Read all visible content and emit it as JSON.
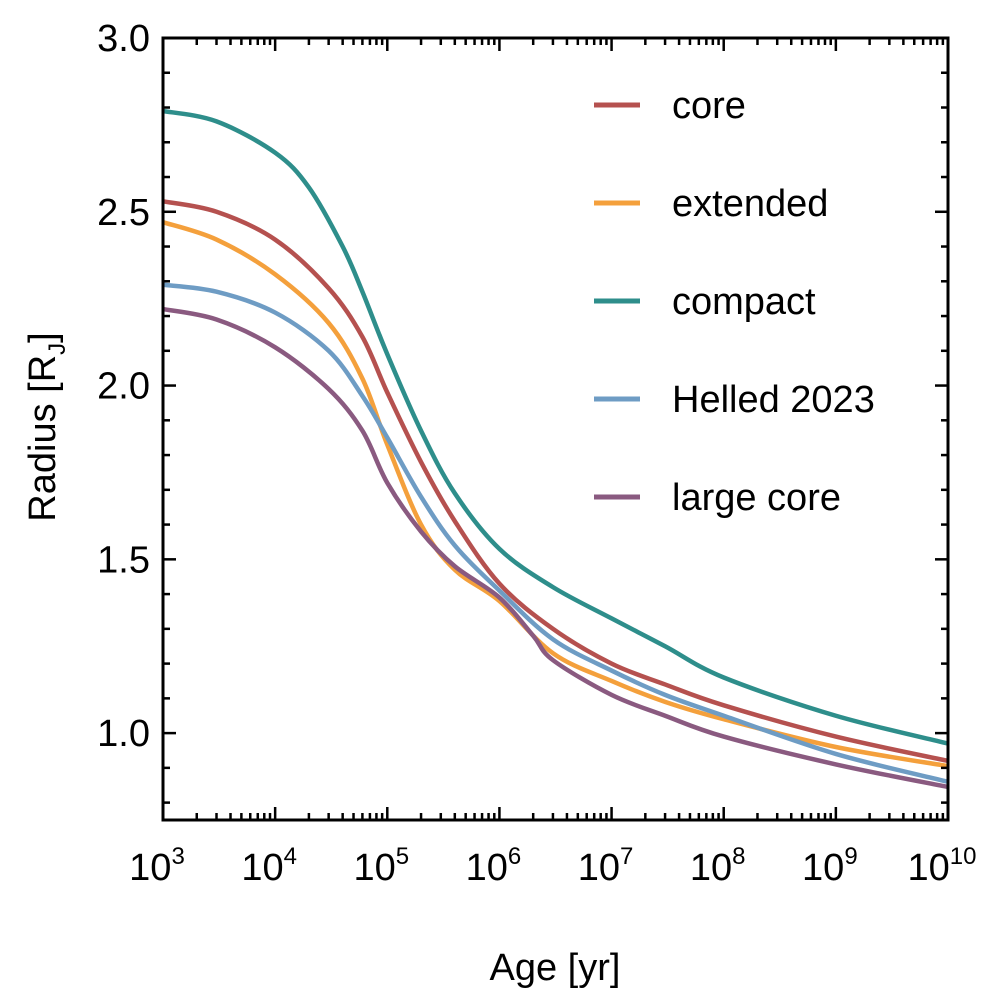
{
  "chart_data": {
    "type": "line",
    "xlabel": "Age [yr]",
    "ylabel_main": "Radius [R",
    "ylabel_sub": "J",
    "ylabel_close": "]",
    "xscale": "log",
    "xlim": [
      1000,
      10000000000
    ],
    "ylim": [
      0.75,
      3.0
    ],
    "x_ticks": [
      {
        "base": "10",
        "exp": "3",
        "value": 1000
      },
      {
        "base": "10",
        "exp": "4",
        "value": 10000
      },
      {
        "base": "10",
        "exp": "5",
        "value": 100000
      },
      {
        "base": "10",
        "exp": "6",
        "value": 1000000
      },
      {
        "base": "10",
        "exp": "7",
        "value": 10000000
      },
      {
        "base": "10",
        "exp": "8",
        "value": 100000000
      },
      {
        "base": "10",
        "exp": "9",
        "value": 1000000000
      },
      {
        "base": "10",
        "exp": "10",
        "value": 10000000000
      }
    ],
    "y_ticks": [
      {
        "label": "1.0",
        "value": 1.0
      },
      {
        "label": "1.5",
        "value": 1.5
      },
      {
        "label": "2.0",
        "value": 2.0
      },
      {
        "label": "2.5",
        "value": 2.5
      },
      {
        "label": "3.0",
        "value": 3.0
      }
    ],
    "legend_position": "top-right",
    "grid": false,
    "series": [
      {
        "name": "core",
        "color": "#b5514f",
        "x": [
          1000,
          3000,
          10000,
          30000,
          60000,
          100000,
          200000,
          400000,
          1000000,
          3000000,
          10000000,
          30000000,
          100000000,
          1000000000,
          10000000000
        ],
        "y": [
          2.53,
          2.5,
          2.42,
          2.28,
          2.14,
          1.98,
          1.78,
          1.61,
          1.43,
          1.3,
          1.2,
          1.14,
          1.08,
          0.99,
          0.92
        ]
      },
      {
        "name": "extended",
        "color": "#f4a03c",
        "x": [
          1000,
          3000,
          10000,
          30000,
          60000,
          100000,
          200000,
          400000,
          1000000,
          3000000,
          10000000,
          30000000,
          100000000,
          1000000000,
          10000000000
        ],
        "y": [
          2.47,
          2.42,
          2.32,
          2.18,
          2.02,
          1.83,
          1.6,
          1.47,
          1.38,
          1.23,
          1.15,
          1.09,
          1.04,
          0.96,
          0.905
        ]
      },
      {
        "name": "compact",
        "color": "#2e8e8b",
        "x": [
          1000,
          3000,
          10000,
          20000,
          40000,
          60000,
          100000,
          200000,
          400000,
          1000000,
          3000000,
          10000000,
          30000000,
          100000000,
          1000000000,
          10000000000
        ],
        "y": [
          2.79,
          2.76,
          2.67,
          2.57,
          2.4,
          2.27,
          2.09,
          1.87,
          1.69,
          1.53,
          1.42,
          1.33,
          1.25,
          1.16,
          1.05,
          0.97
        ]
      },
      {
        "name": "Helled 2023",
        "color": "#6e9cc4",
        "x": [
          1000,
          3000,
          10000,
          30000,
          60000,
          100000,
          200000,
          400000,
          1000000,
          3000000,
          10000000,
          30000000,
          100000000,
          1000000000,
          10000000000
        ],
        "y": [
          2.29,
          2.27,
          2.21,
          2.1,
          1.97,
          1.85,
          1.68,
          1.54,
          1.41,
          1.27,
          1.18,
          1.11,
          1.05,
          0.94,
          0.86
        ]
      },
      {
        "name": "large core",
        "color": "#8a5a80",
        "x": [
          1000,
          3000,
          10000,
          30000,
          60000,
          100000,
          200000,
          400000,
          1000000,
          2000000,
          3000000,
          10000000,
          30000000,
          100000000,
          1000000000,
          10000000000
        ],
        "y": [
          2.22,
          2.19,
          2.11,
          1.99,
          1.87,
          1.72,
          1.58,
          1.48,
          1.39,
          1.28,
          1.21,
          1.11,
          1.05,
          0.99,
          0.91,
          0.845
        ]
      }
    ]
  }
}
